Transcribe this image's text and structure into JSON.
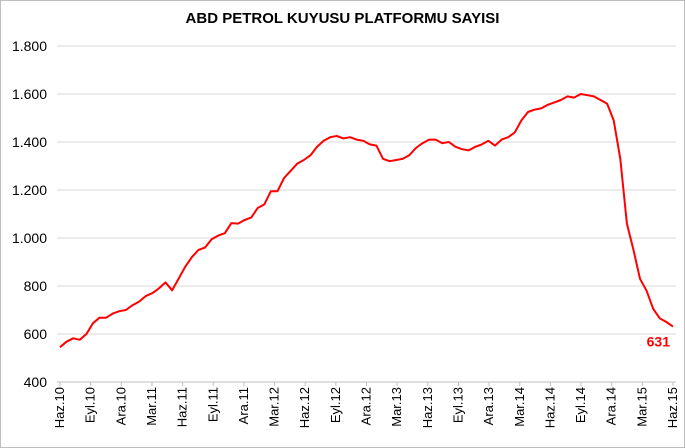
{
  "chart_data": {
    "type": "line",
    "title": "ABD PETROL KUYUSU PLATFORMU SAYISI",
    "xlabel": "",
    "ylabel": "",
    "ylim": [
      400,
      1800
    ],
    "yticks": [
      400,
      600,
      800,
      1000,
      1200,
      1400,
      1600,
      1800
    ],
    "ytick_labels": [
      "400",
      "600",
      "800",
      "1.000",
      "1.200",
      "1.400",
      "1.600",
      "1.800"
    ],
    "xtick_labels": [
      "Haz.10",
      "Eyl.10",
      "Ara.10",
      "Mar.11",
      "Haz.11",
      "Eyl.11",
      "Ara.11",
      "Mar.12",
      "Haz.12",
      "Eyl.12",
      "Ara.12",
      "Mar.13",
      "Haz.13",
      "Eyl.13",
      "Ara.13",
      "Mar.14",
      "Haz.14",
      "Eyl.14",
      "Ara.14",
      "Mar.15",
      "Haz.15"
    ],
    "grid": true,
    "line_color": "#ff0000",
    "series": [
      {
        "values": [
          545,
          568,
          582,
          576,
          600,
          645,
          668,
          668,
          685,
          695,
          700,
          720,
          735,
          758,
          770,
          790,
          815,
          782,
          830,
          880,
          920,
          950,
          960,
          995,
          1010,
          1020,
          1062,
          1060,
          1075,
          1085,
          1125,
          1140,
          1195,
          1195,
          1250,
          1280,
          1310,
          1325,
          1345,
          1380,
          1405,
          1420,
          1425,
          1415,
          1420,
          1410,
          1405,
          1390,
          1385,
          1330,
          1320,
          1325,
          1330,
          1345,
          1375,
          1395,
          1410,
          1410,
          1395,
          1400,
          1380,
          1370,
          1365,
          1380,
          1390,
          1405,
          1385,
          1410,
          1420,
          1440,
          1490,
          1525,
          1535,
          1540,
          1555,
          1565,
          1575,
          1590,
          1585,
          1600,
          1595,
          1590,
          1575,
          1560,
          1490,
          1330,
          1060,
          950,
          830,
          780,
          705,
          665,
          650,
          631
        ]
      }
    ],
    "annotations": [
      {
        "text": "631",
        "color": "#ff0000"
      }
    ]
  }
}
